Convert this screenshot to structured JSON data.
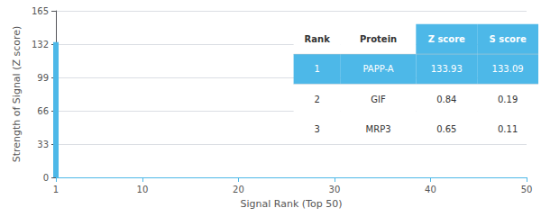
{
  "chart_data": {
    "type": "bar",
    "xlabel": "Signal Rank (Top 50)",
    "ylabel": "Strength of Signal (Z score)",
    "x": [
      1
    ],
    "values": [
      133.93
    ],
    "color": "#4db8e8",
    "xlim": [
      1,
      50
    ],
    "xticks": [
      1,
      10,
      20,
      30,
      40,
      50
    ],
    "ylim": [
      0,
      165
    ],
    "yticks": [
      0,
      33,
      66,
      99,
      132,
      165
    ],
    "grid": true,
    "table": [
      [
        "Rank",
        "Protein",
        "Z score",
        "S score"
      ],
      [
        "1",
        "PAPP-A",
        "133.93",
        "133.09"
      ],
      [
        "2",
        "GIF",
        "0.84",
        "0.19"
      ],
      [
        "3",
        "MRP3",
        "0.65",
        "0.11"
      ]
    ]
  }
}
